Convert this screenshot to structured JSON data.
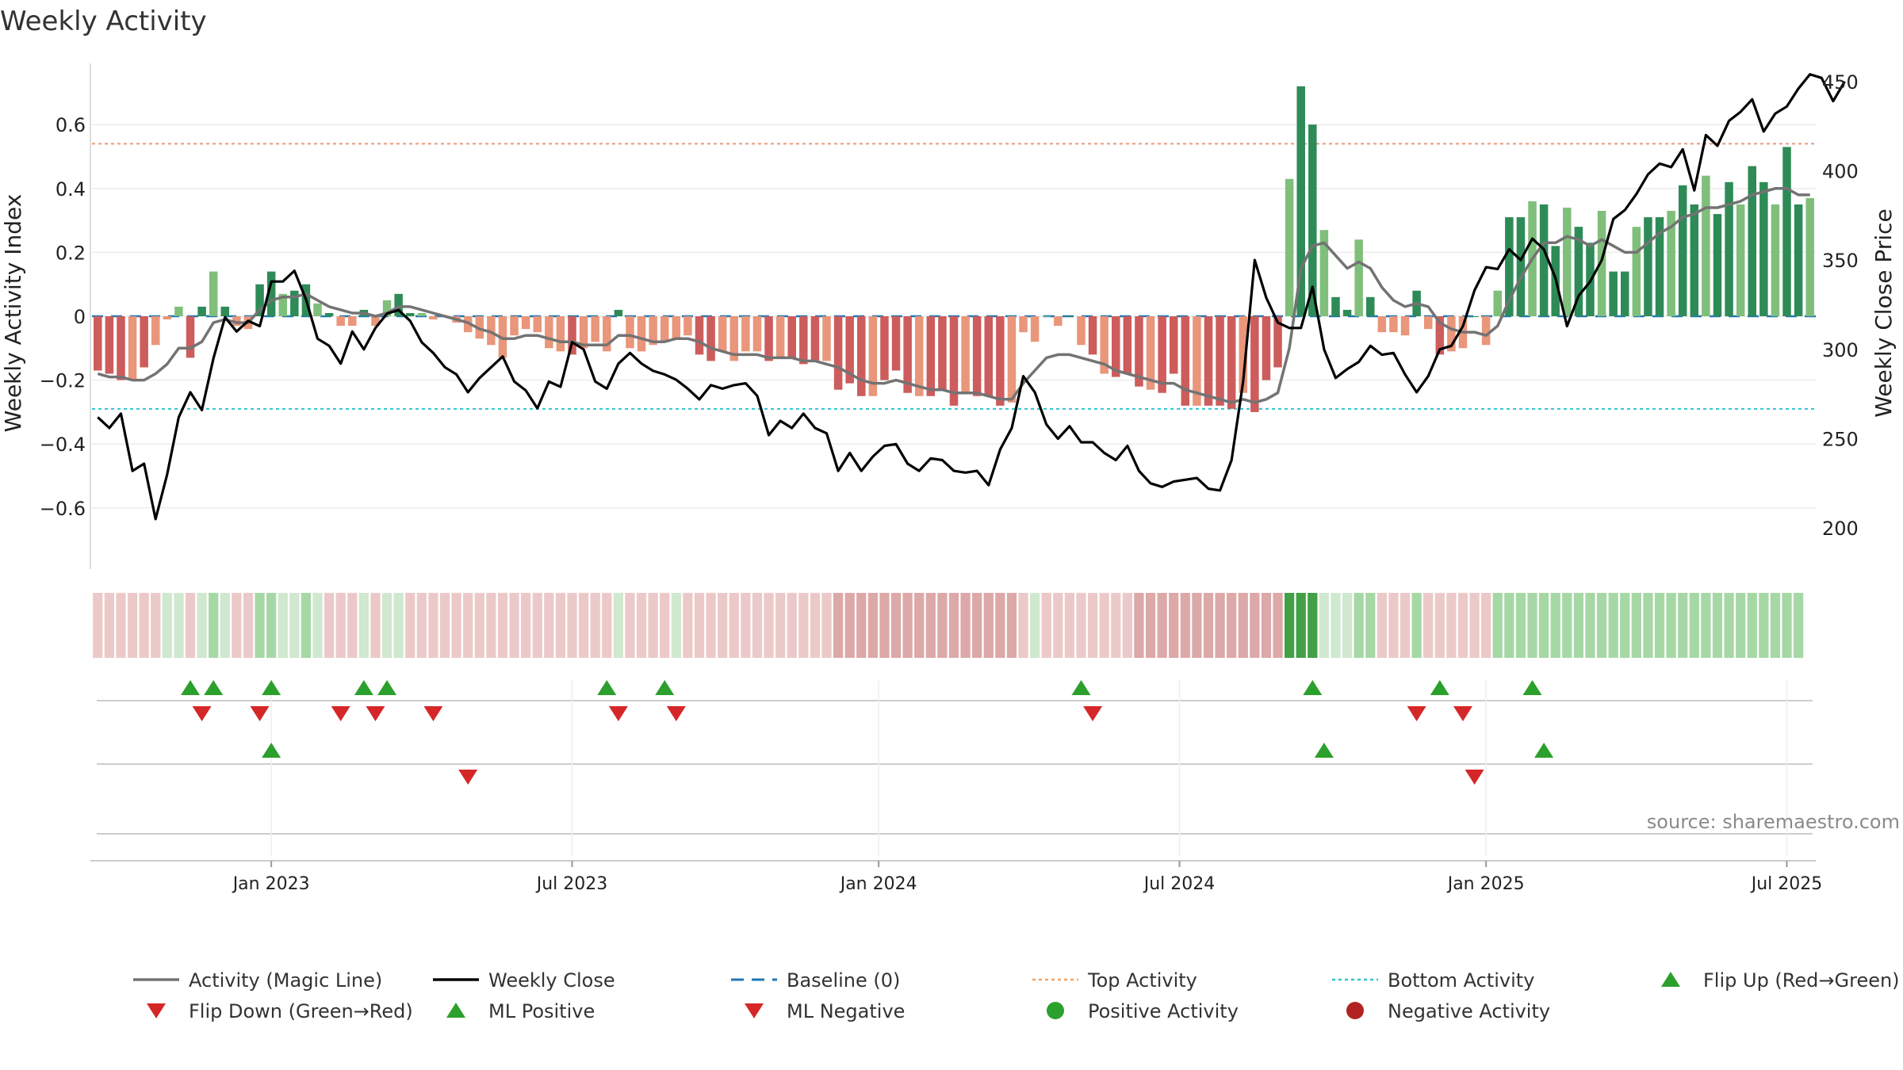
{
  "chart_data": {
    "type": "bar",
    "title": "Weekly Activity",
    "ylabel_left": "Weekly Activity Index",
    "ylabel_right": "Weekly Close Price",
    "source": "source: sharemaestro.com",
    "left_axis": {
      "ylim": [
        -0.8,
        0.8
      ],
      "ticks": [
        0.6,
        0.4,
        0.2,
        0,
        -0.2,
        -0.4,
        -0.6
      ],
      "tick_labels": [
        "0.6",
        "0.4",
        "0.2",
        "0",
        "−0.2",
        "−0.4",
        "−0.6"
      ]
    },
    "right_axis": {
      "ylim": [
        177,
        457
      ],
      "ticks": [
        450,
        400,
        350,
        300,
        250,
        200
      ],
      "tick_labels": [
        "450",
        "400",
        "350",
        "300",
        "250",
        "200"
      ]
    },
    "x_ticks": [
      {
        "label": "Jan 2023",
        "week": 15
      },
      {
        "label": "Jul 2023",
        "week": 41
      },
      {
        "label": "Jan 2024",
        "week": 67.5
      },
      {
        "label": "Jul 2024",
        "week": 93.5
      },
      {
        "label": "Jan 2025",
        "week": 120
      },
      {
        "label": "Jul 2025",
        "week": 146
      }
    ],
    "top_activity": 0.54,
    "bottom_activity": -0.29,
    "baseline": 0,
    "series": [
      {
        "name": "Weekly Activity Index",
        "values": [
          -0.17,
          -0.18,
          -0.2,
          -0.2,
          -0.16,
          -0.09,
          -0.01,
          0.03,
          -0.13,
          0.03,
          0.14,
          0.03,
          -0.03,
          -0.04,
          0.1,
          0.14,
          0.07,
          0.08,
          0.1,
          0.04,
          0.01,
          -0.03,
          -0.03,
          0.02,
          -0.03,
          0.05,
          0.07,
          0.01,
          0.01,
          -0.01,
          0,
          -0.02,
          -0.05,
          -0.07,
          -0.09,
          -0.13,
          -0.06,
          -0.04,
          -0.05,
          -0.1,
          -0.11,
          -0.12,
          -0.1,
          -0.08,
          -0.11,
          0.02,
          -0.1,
          -0.11,
          -0.09,
          -0.08,
          -0.07,
          -0.06,
          -0.12,
          -0.14,
          -0.11,
          -0.14,
          -0.11,
          -0.11,
          -0.14,
          -0.13,
          -0.13,
          -0.15,
          -0.14,
          -0.14,
          -0.23,
          -0.21,
          -0.25,
          -0.25,
          -0.2,
          -0.17,
          -0.24,
          -0.25,
          -0.25,
          -0.23,
          -0.28,
          -0.24,
          -0.25,
          -0.25,
          -0.28,
          -0.27,
          -0.05,
          -0.08,
          0,
          -0.03,
          0,
          -0.09,
          -0.12,
          -0.18,
          -0.19,
          -0.18,
          -0.22,
          -0.23,
          -0.24,
          -0.18,
          -0.28,
          -0.28,
          -0.28,
          -0.28,
          -0.29,
          -0.24,
          -0.3,
          -0.2,
          -0.16,
          0.43,
          0.72,
          0.6,
          0.27,
          0.06,
          0.02,
          0.24,
          0.06,
          -0.05,
          -0.05,
          -0.06,
          0.08,
          -0.04,
          -0.12,
          -0.11,
          -0.1,
          0,
          -0.09,
          0.08,
          0.31,
          0.31,
          0.36,
          0.35,
          0.22,
          0.34,
          0.28,
          0.23,
          0.33,
          0.14,
          0.14,
          0.28,
          0.31,
          0.31,
          0.33,
          0.41,
          0.35,
          0.44,
          0.32,
          0.42,
          0.35,
          0.47,
          0.42,
          0.35,
          0.53,
          0.35,
          0.37
        ]
      },
      {
        "name": "Activity (Magic Line)",
        "values": [
          -0.18,
          -0.19,
          -0.19,
          -0.2,
          -0.2,
          -0.18,
          -0.15,
          -0.1,
          -0.1,
          -0.08,
          -0.02,
          -0.01,
          -0.02,
          -0.02,
          0.02,
          0.05,
          0.06,
          0.06,
          0.07,
          0.05,
          0.03,
          0.02,
          0.01,
          0.01,
          0,
          0.01,
          0.03,
          0.03,
          0.02,
          0.01,
          0,
          -0.01,
          -0.02,
          -0.04,
          -0.05,
          -0.07,
          -0.07,
          -0.06,
          -0.06,
          -0.07,
          -0.08,
          -0.08,
          -0.09,
          -0.09,
          -0.09,
          -0.06,
          -0.06,
          -0.07,
          -0.08,
          -0.08,
          -0.07,
          -0.07,
          -0.08,
          -0.1,
          -0.11,
          -0.12,
          -0.12,
          -0.12,
          -0.13,
          -0.13,
          -0.13,
          -0.14,
          -0.14,
          -0.15,
          -0.16,
          -0.18,
          -0.2,
          -0.21,
          -0.21,
          -0.2,
          -0.21,
          -0.22,
          -0.23,
          -0.23,
          -0.24,
          -0.24,
          -0.24,
          -0.25,
          -0.26,
          -0.26,
          -0.21,
          -0.17,
          -0.13,
          -0.12,
          -0.12,
          -0.13,
          -0.14,
          -0.15,
          -0.17,
          -0.18,
          -0.19,
          -0.2,
          -0.21,
          -0.21,
          -0.23,
          -0.24,
          -0.25,
          -0.26,
          -0.27,
          -0.26,
          -0.27,
          -0.26,
          -0.24,
          -0.1,
          0.15,
          0.22,
          0.23,
          0.19,
          0.15,
          0.17,
          0.15,
          0.09,
          0.05,
          0.03,
          0.04,
          0.03,
          -0.02,
          -0.04,
          -0.05,
          -0.05,
          -0.06,
          -0.03,
          0.05,
          0.12,
          0.18,
          0.23,
          0.23,
          0.25,
          0.24,
          0.22,
          0.24,
          0.22,
          0.2,
          0.2,
          0.23,
          0.26,
          0.28,
          0.31,
          0.32,
          0.34,
          0.34,
          0.35,
          0.36,
          0.38,
          0.39,
          0.4,
          0.4,
          0.38,
          0.38
        ]
      },
      {
        "name": "Weekly Close",
        "values": [
          262,
          256,
          264,
          232,
          236,
          205,
          230,
          262,
          276,
          266,
          295,
          318,
          310,
          316,
          313,
          338,
          338,
          344,
          328,
          306,
          302,
          292,
          310,
          300,
          312,
          320,
          322,
          316,
          304,
          298,
          290,
          286,
          276,
          284,
          290,
          296,
          282,
          277,
          267,
          282,
          279,
          304,
          300,
          282,
          278,
          292,
          298,
          292,
          288,
          286,
          283,
          278,
          272,
          280,
          278,
          280,
          281,
          274,
          252,
          260,
          256,
          264,
          256,
          253,
          232,
          242,
          232,
          240,
          246,
          247,
          236,
          232,
          239,
          238,
          232,
          231,
          232,
          224,
          244,
          256,
          285,
          276,
          258,
          250,
          257,
          248,
          248,
          242,
          238,
          246,
          232,
          225,
          223,
          226,
          227,
          228,
          222,
          221,
          238,
          282,
          350,
          329,
          315,
          312,
          312,
          335,
          300,
          284,
          289,
          293,
          302,
          297,
          298,
          286,
          276,
          285,
          300,
          302,
          313,
          333,
          346,
          345,
          356,
          350,
          362,
          356,
          340,
          313,
          330,
          338,
          350,
          373,
          378,
          387,
          398,
          404,
          402,
          412,
          389,
          420,
          414,
          428,
          433,
          440,
          422,
          432,
          436,
          446,
          454,
          452,
          439,
          450
        ]
      }
    ],
    "band_levels": [
      -1,
      -1,
      -1,
      -1,
      -1,
      -1,
      1,
      1,
      -1,
      1,
      2,
      1,
      -1,
      -1,
      2,
      2,
      1,
      1,
      2,
      1,
      -1,
      -1,
      -1,
      1,
      -1,
      1,
      1,
      -1,
      -1,
      -1,
      -1,
      -1,
      -1,
      -1,
      -1,
      -1,
      -1,
      -1,
      -1,
      -1,
      -1,
      -1,
      -1,
      -1,
      -1,
      1,
      -1,
      -1,
      -1,
      -1,
      1,
      -1,
      -1,
      -1,
      -1,
      -1,
      -1,
      -1,
      -1,
      -1,
      -1,
      -1,
      -1,
      -1,
      -2,
      -2,
      -2,
      -2,
      -2,
      -2,
      -2,
      -2,
      -2,
      -2,
      -2,
      -2,
      -2,
      -2,
      -2,
      -2,
      -1,
      1,
      -1,
      -1,
      -1,
      -1,
      -1,
      -1,
      -1,
      -1,
      -2,
      -2,
      -2,
      -2,
      -2,
      -2,
      -2,
      -2,
      -2,
      -2,
      -2,
      -2,
      -2,
      3,
      3,
      3,
      1,
      1,
      1,
      2,
      2,
      -1,
      -1,
      -1,
      2,
      -1,
      -1,
      -1,
      -1,
      -1,
      -1,
      2,
      2,
      2,
      2,
      2,
      2,
      2,
      2,
      2,
      2,
      2,
      2,
      2,
      2,
      2,
      2,
      2,
      2,
      2,
      2,
      2,
      2,
      2,
      2,
      2,
      2,
      2
    ],
    "flip_up_weeks": [
      8,
      10,
      15,
      23,
      25,
      44,
      49,
      85,
      105,
      116,
      124
    ],
    "flip_down_weeks": [
      9,
      14,
      21,
      24,
      29,
      45,
      50,
      86,
      114,
      118
    ],
    "ml_positive_weeks": [
      15,
      106,
      125
    ],
    "ml_negative_weeks": [
      32,
      119
    ],
    "legend": [
      {
        "label": "Activity (Magic Line)",
        "kind": "line",
        "color": "#737373"
      },
      {
        "label": "Weekly Close",
        "kind": "line",
        "color": "#000000"
      },
      {
        "label": "Baseline (0)",
        "kind": "dash",
        "color": "#1f77b4"
      },
      {
        "label": "Top Activity",
        "kind": "dot",
        "color": "#f4a261"
      },
      {
        "label": "Bottom Activity",
        "kind": "dot",
        "color": "#2ec4d4"
      },
      {
        "label": "Flip Up (Red→Green)",
        "kind": "tri-up",
        "color": "#2ca02c"
      },
      {
        "label": "Flip Down (Green→Red)",
        "kind": "tri-down",
        "color": "#d62728"
      },
      {
        "label": "ML Positive",
        "kind": "tri-up",
        "color": "#2ca02c"
      },
      {
        "label": "ML Negative",
        "kind": "tri-down",
        "color": "#d62728"
      },
      {
        "label": "Positive Activity",
        "kind": "circle",
        "color": "#2ca02c"
      },
      {
        "label": "Negative Activity",
        "kind": "circle",
        "color": "#b22222"
      }
    ],
    "colors": {
      "pos_strong": "#2e8b57",
      "pos_light": "#7fbf7b",
      "neg_strong": "#cd5c5c",
      "neg_light": "#e9967a",
      "band_neg_strong": "#dda8a8",
      "band_neg_light": "#ecc9c9",
      "band_pos_light": "#cfe8cf",
      "band_pos_mid": "#a6d8a6",
      "band_pos_strong": "#43a047",
      "grid": "#ececec",
      "marker_up": "#2ca02c",
      "marker_down": "#d62728"
    }
  }
}
